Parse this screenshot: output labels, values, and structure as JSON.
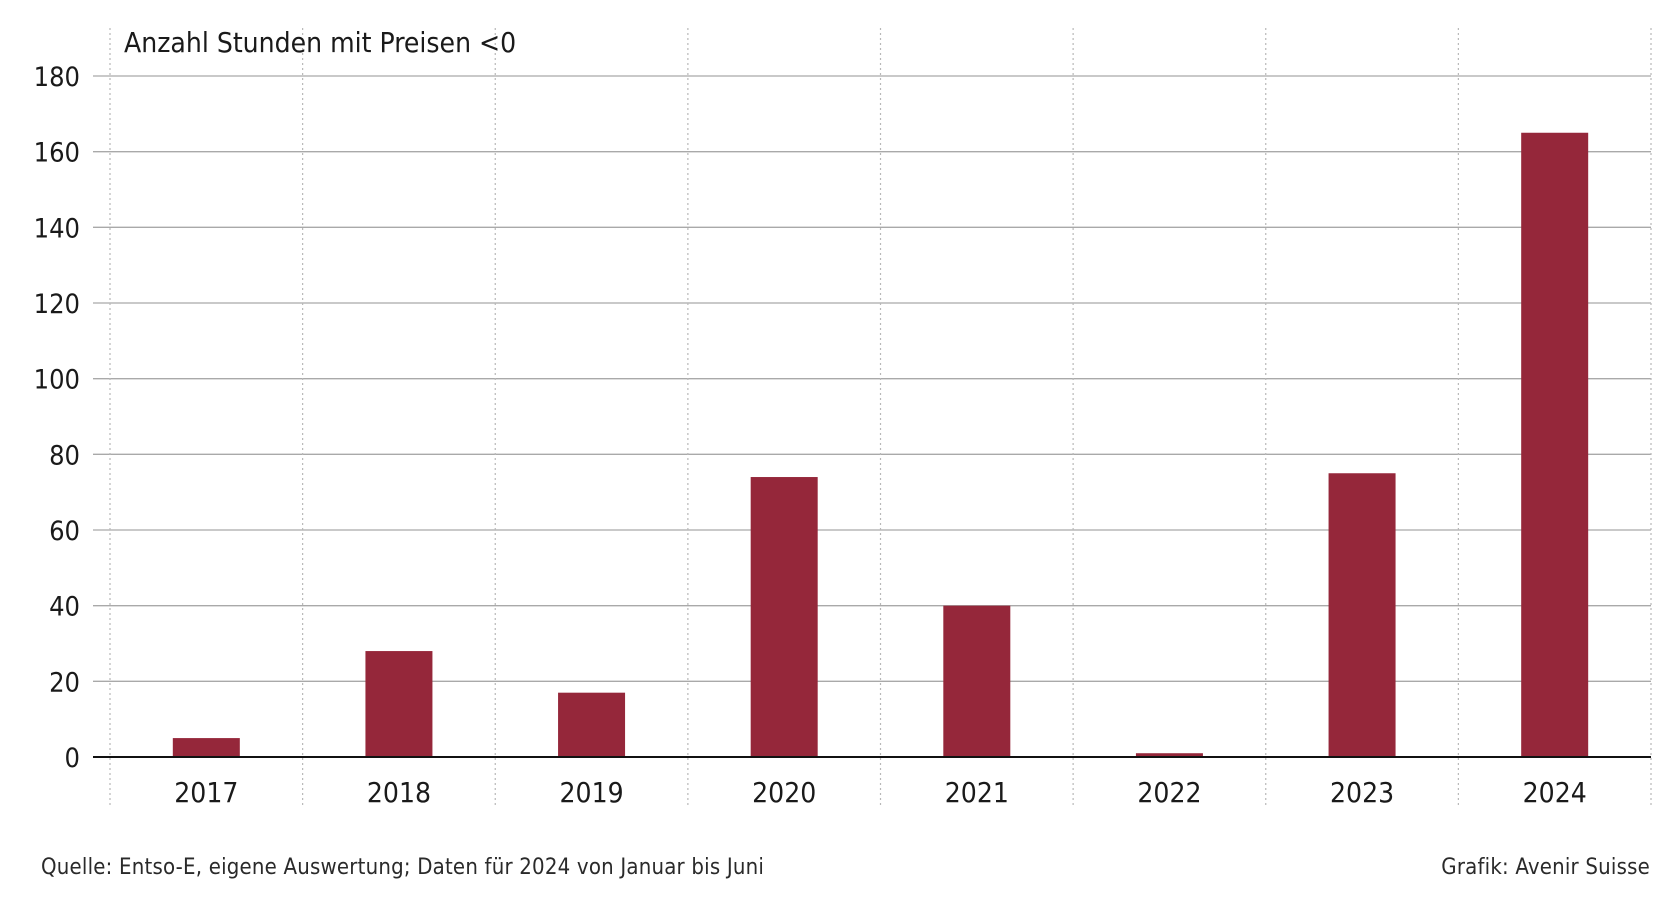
{
  "chart_data": {
    "type": "bar",
    "title": "Anzahl Stunden mit Preisen <0",
    "categories": [
      "2017",
      "2018",
      "2019",
      "2020",
      "2021",
      "2022",
      "2023",
      "2024"
    ],
    "values": [
      5,
      28,
      17,
      74,
      40,
      1,
      75,
      165
    ],
    "ylim": [
      0,
      180
    ],
    "yticks": [
      0,
      20,
      40,
      60,
      80,
      100,
      120,
      140,
      160,
      180
    ],
    "xlabel": "",
    "ylabel": "",
    "grid": true,
    "bar_color": "#95273A",
    "source": "Quelle: Entso-E, eigene Auswertung; Daten für 2024 von Januar bis Juni",
    "credit": "Grafik: Avenir Suisse"
  }
}
